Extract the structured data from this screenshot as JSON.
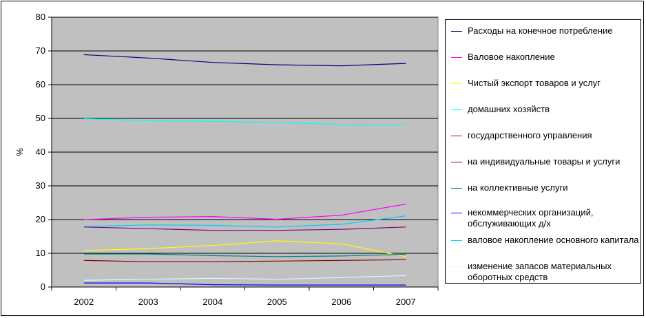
{
  "chart_data": {
    "type": "line",
    "title": "",
    "xlabel": "",
    "ylabel": "%",
    "ylim": [
      0,
      80
    ],
    "yticks": [
      "0",
      "10",
      "20",
      "30",
      "40",
      "50",
      "60",
      "70",
      "80"
    ],
    "categories": [
      "2002",
      "2003",
      "2004",
      "2005",
      "2006",
      "2007"
    ],
    "grid": "horizontal",
    "legend_position": "right",
    "plot_background": "#c0c0c0",
    "series": [
      {
        "name": "Расходы на конечное потребление",
        "color": "#000080",
        "values": [
          68.9,
          67.9,
          66.6,
          65.9,
          65.6,
          66.3
        ]
      },
      {
        "name": "Валовое накопление",
        "color": "#ff00ff",
        "values": [
          20.0,
          20.7,
          20.9,
          20.1,
          21.3,
          24.6
        ]
      },
      {
        "name": "Чистый экспорт товаров и услуг",
        "color": "#ffff00",
        "values": [
          10.8,
          11.4,
          12.3,
          13.7,
          12.8,
          9.0
        ]
      },
      {
        "name": "домашних хозяйств",
        "color": "#00ffff",
        "values": [
          49.9,
          49.3,
          49.1,
          48.8,
          48.2,
          48.1
        ]
      },
      {
        "name": "государственного управления",
        "color": "#800080",
        "values": [
          17.8,
          17.3,
          16.8,
          16.8,
          17.1,
          17.8
        ]
      },
      {
        "name": "на индивидуальные товары и услуги",
        "color": "#800000",
        "values": [
          7.9,
          7.5,
          7.5,
          7.7,
          7.9,
          8.1
        ]
      },
      {
        "name": "на коллективные услуги",
        "color": "#008080",
        "values": [
          9.8,
          9.8,
          9.3,
          9.0,
          9.2,
          9.7
        ]
      },
      {
        "name": "некоммерческих организаций, обслуживающих д/х",
        "color": "#0000ff",
        "values": [
          1.2,
          1.2,
          0.7,
          0.6,
          0.6,
          0.6
        ]
      },
      {
        "name": "валовое накопление основного капитала",
        "color": "#00ccff",
        "values": [
          18.0,
          18.4,
          18.3,
          17.8,
          18.6,
          21.1
        ]
      },
      {
        "name": "изменение запасов материальных оборотных средств",
        "color": "#ccffff",
        "values": [
          2.0,
          2.3,
          2.6,
          2.3,
          2.8,
          3.4
        ]
      }
    ]
  }
}
